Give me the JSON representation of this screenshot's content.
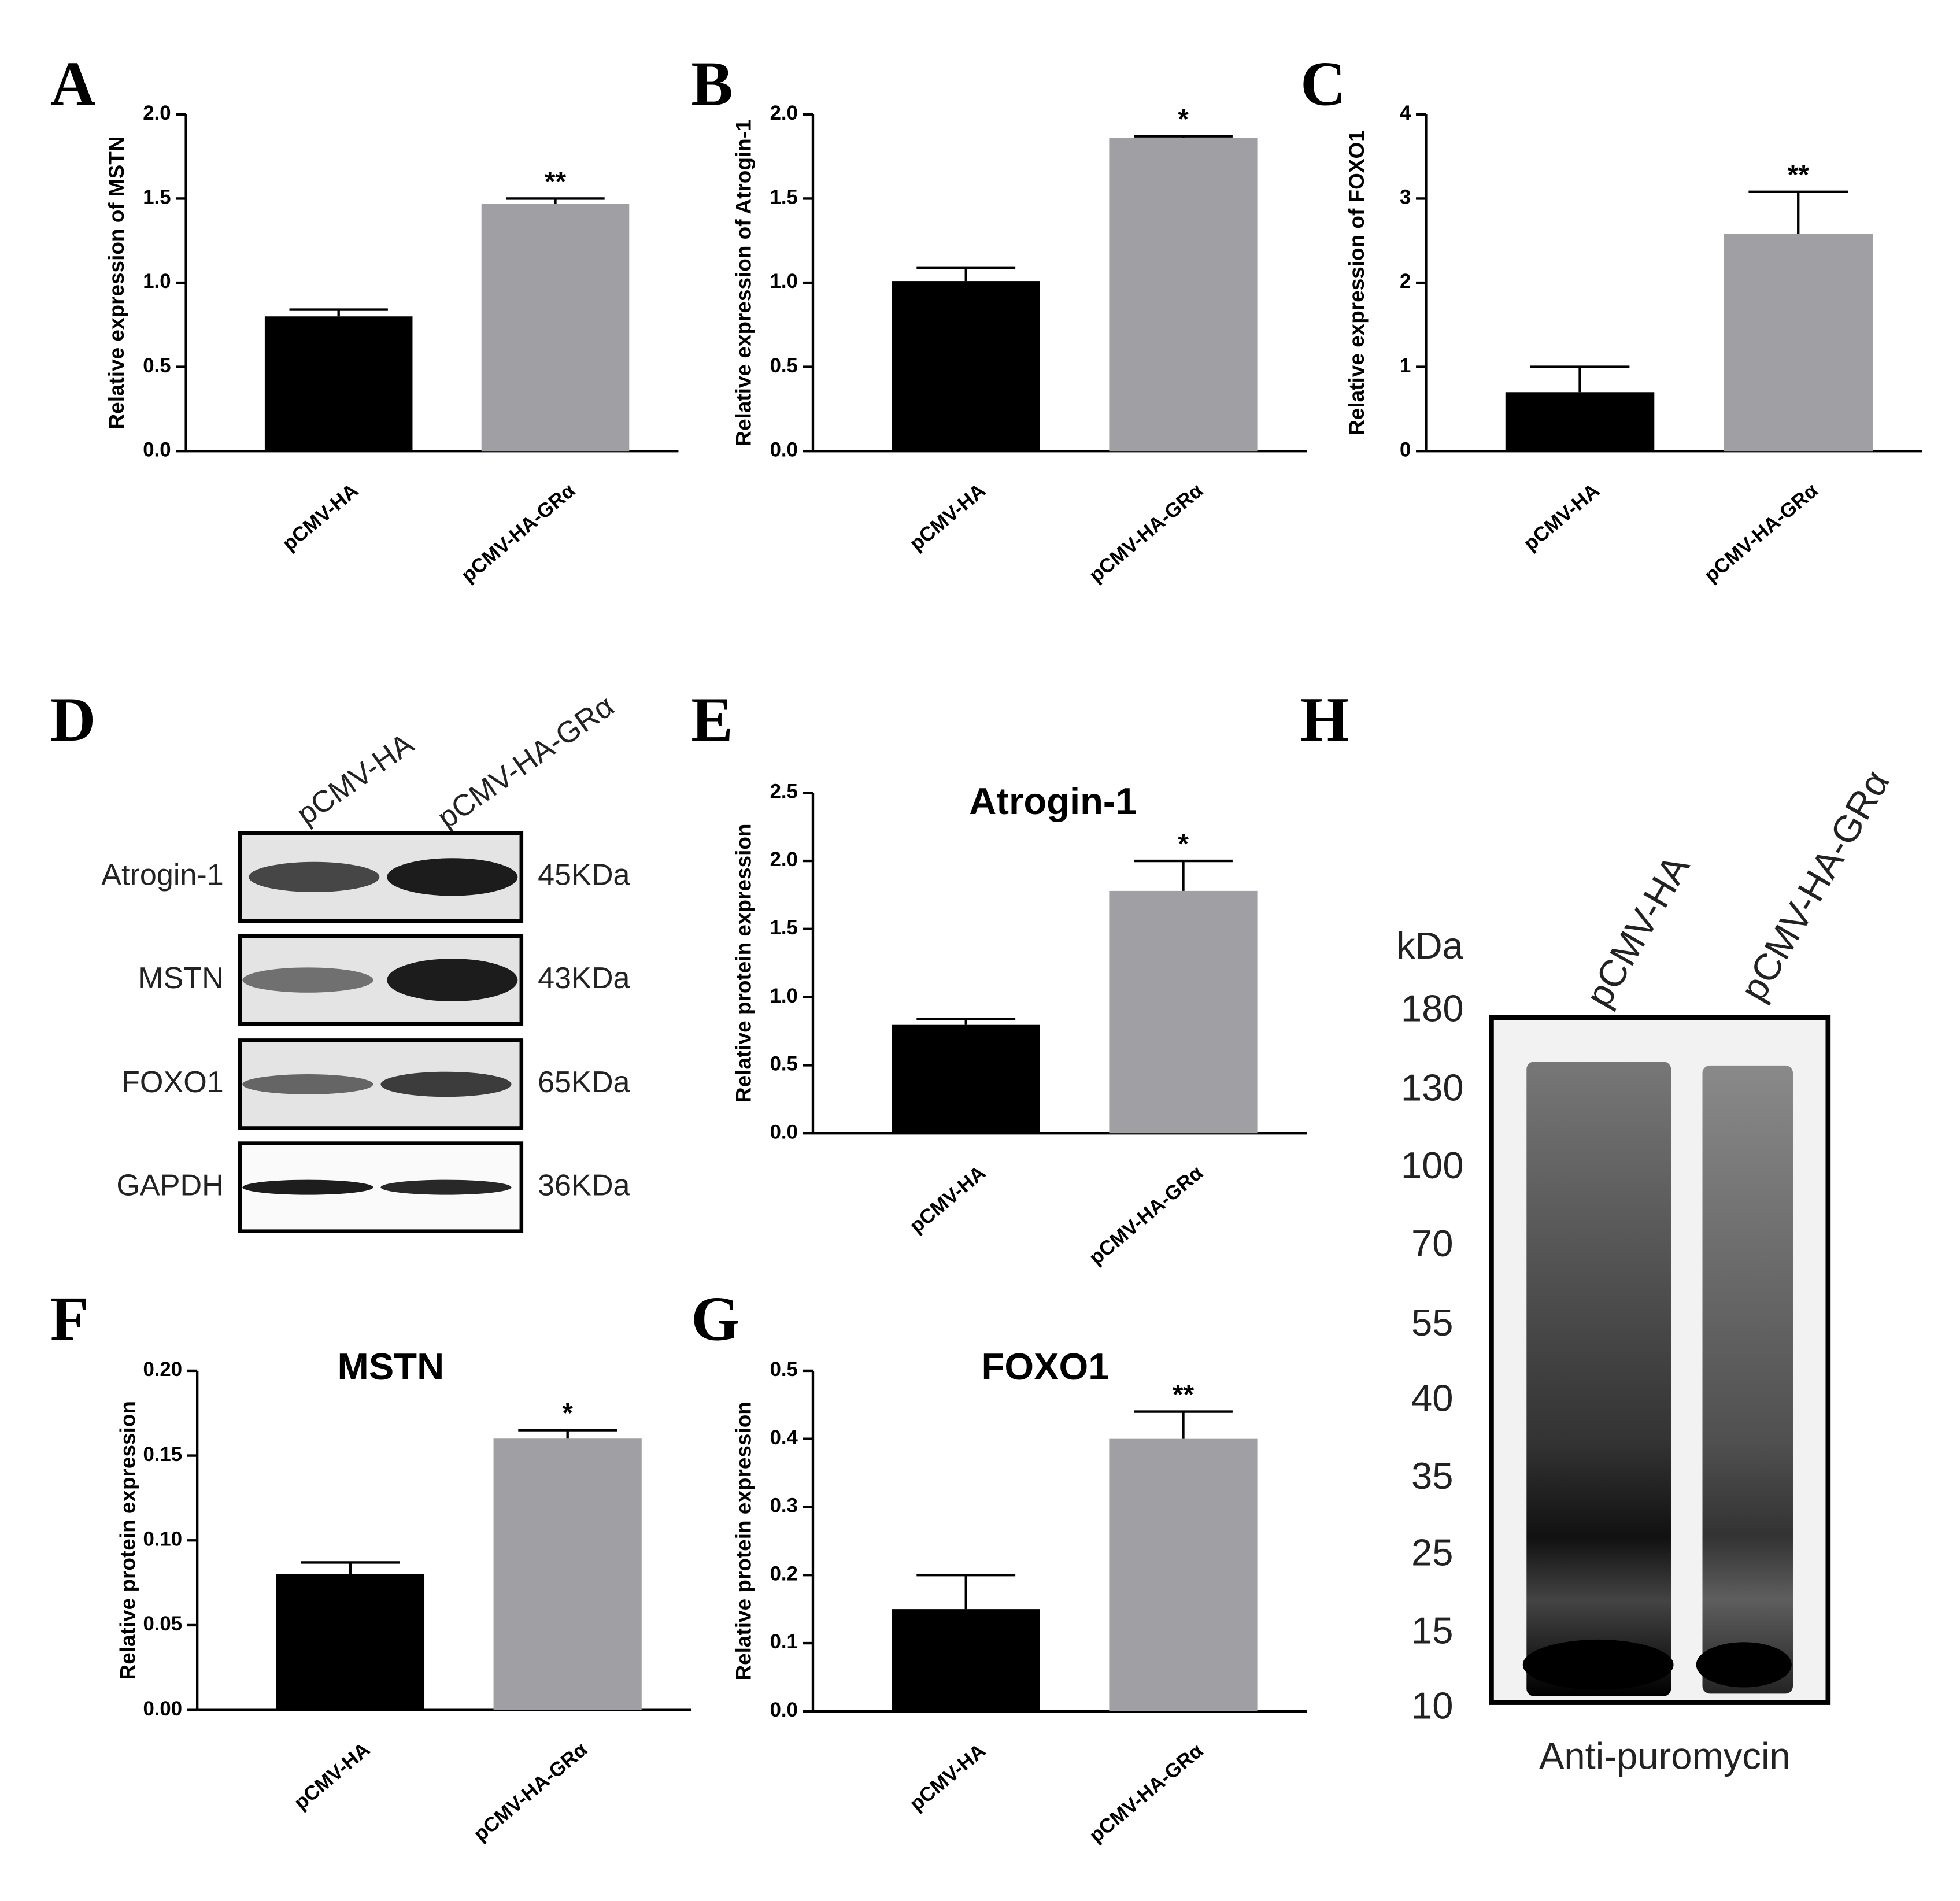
{
  "chart_data": [
    {
      "type": "bar",
      "panel_label": "A",
      "y_label": "Relative expression of MSTN",
      "categories": [
        "pCMV-HA",
        "pCMV-HA-GRα"
      ],
      "values": [
        0.8,
        1.47
      ],
      "errors": [
        0.04,
        0.03
      ],
      "colors": [
        "#000000",
        "#a0a0a4"
      ],
      "ylim": [
        0,
        2
      ],
      "yticks": [
        {
          "value": 0,
          "label": "0.0"
        },
        0.5,
        {
          "value": 1,
          "label": "1.0"
        },
        1.5,
        {
          "value": 2,
          "label": "2.0"
        }
      ],
      "significance": {
        "index": 1,
        "label": "**"
      }
    },
    {
      "type": "bar",
      "panel_label": "B",
      "y_label": "Relative expression of Atrogin-1",
      "categories": [
        "pCMV-HA",
        "pCMV-HA-GRα"
      ],
      "values": [
        1.01,
        1.86
      ],
      "errors": [
        0.08,
        0.01
      ],
      "colors": [
        "#000000",
        "#a0a0a4"
      ],
      "ylim": [
        0,
        2
      ],
      "yticks": [
        {
          "value": 0,
          "label": "0.0"
        },
        0.5,
        {
          "value": 1,
          "label": "1.0"
        },
        1.5,
        {
          "value": 2,
          "label": "2.0"
        }
      ],
      "significance": {
        "index": 1,
        "label": "*"
      }
    },
    {
      "type": "bar",
      "panel_label": "C",
      "y_label": "Relative expression of FOXO1",
      "categories": [
        "pCMV-HA",
        "pCMV-HA-GRα"
      ],
      "values": [
        0.7,
        2.58
      ],
      "errors": [
        0.3,
        0.5
      ],
      "colors": [
        "#000000",
        "#a0a0a4"
      ],
      "ylim": [
        0,
        4
      ],
      "yticks": [
        0,
        1,
        2,
        3,
        4
      ],
      "significance": {
        "index": 1,
        "label": "**"
      }
    },
    {
      "type": "bar",
      "panel_label": "E",
      "title": "Atrogin-1",
      "y_label": "Relative protein expression",
      "categories": [
        "pCMV-HA",
        "pCMV-HA-GRα"
      ],
      "values": [
        0.8,
        1.78
      ],
      "errors": [
        0.04,
        0.22
      ],
      "colors": [
        "#000000",
        "#a0a0a4"
      ],
      "ylim": [
        0,
        2.5
      ],
      "yticks": [
        {
          "value": 0,
          "label": "0.0"
        },
        0.5,
        {
          "value": 1,
          "label": "1.0"
        },
        1.5,
        {
          "value": 2,
          "label": "2.0"
        },
        2.5
      ],
      "significance": {
        "index": 1,
        "label": "*"
      }
    },
    {
      "type": "bar",
      "panel_label": "F",
      "title": "MSTN",
      "y_label": "Relative protein expression",
      "categories": [
        "pCMV-HA",
        "pCMV-HA-GRα"
      ],
      "values": [
        0.08,
        0.16
      ],
      "errors": [
        0.007,
        0.005
      ],
      "colors": [
        "#000000",
        "#a0a0a4"
      ],
      "ylim": [
        0,
        0.2
      ],
      "yticks": [
        {
          "value": 0,
          "label": "0.00"
        },
        0.05,
        {
          "value": 0.1,
          "label": "0.10"
        },
        0.15,
        {
          "value": 0.2,
          "label": "0.20"
        }
      ],
      "significance": {
        "index": 1,
        "label": "*"
      }
    },
    {
      "type": "bar",
      "panel_label": "G",
      "title": "FOXO1",
      "y_label": "Relative protein expression",
      "categories": [
        "pCMV-HA",
        "pCMV-HA-GRα"
      ],
      "values": [
        0.15,
        0.4
      ],
      "errors": [
        0.05,
        0.04
      ],
      "colors": [
        "#000000",
        "#a0a0a4"
      ],
      "ylim": [
        0,
        0.5
      ],
      "yticks": [
        {
          "value": 0,
          "label": "0.0"
        },
        0.1,
        0.2,
        0.3,
        0.4,
        0.5
      ],
      "significance": {
        "index": 1,
        "label": "**"
      }
    }
  ],
  "blots": [
    {
      "panel_label": "D",
      "lanes": [
        "pCMV-HA",
        "pCMV-HA-GRα"
      ],
      "rows": [
        {
          "protein": "Atrogin-1",
          "size": "45KDa"
        },
        {
          "protein": "MSTN",
          "size": "43KDa"
        },
        {
          "protein": "FOXO1",
          "size": "65KDa"
        },
        {
          "protein": "GAPDH",
          "size": "36KDa"
        }
      ]
    },
    {
      "panel_label": "H",
      "lanes": [
        "pCMV-HA",
        "pCMV-HA-GRα"
      ],
      "marker_unit": "kDa",
      "markers": [
        180,
        130,
        100,
        70,
        55,
        40,
        35,
        25,
        15,
        10
      ],
      "antibody": "Anti-puromycin"
    }
  ]
}
